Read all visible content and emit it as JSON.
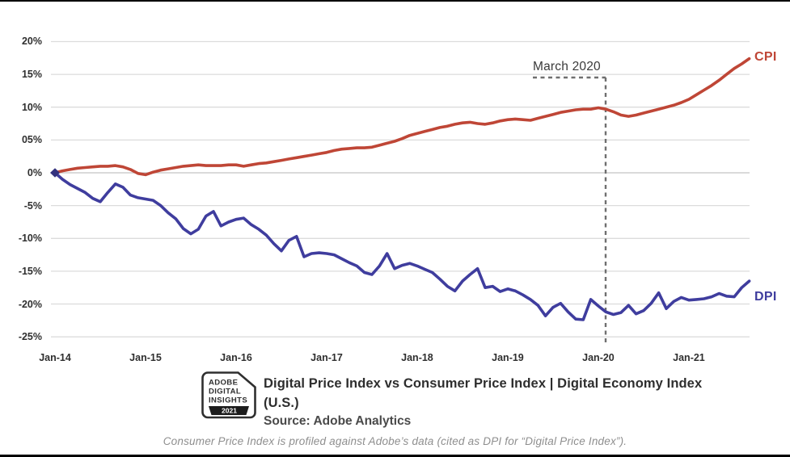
{
  "annotation": {
    "label": "March 2020"
  },
  "series_labels": {
    "cpi": "CPI",
    "dpi": "DPI"
  },
  "colors": {
    "cpi": "#bf4636",
    "dpi": "#3f3d9e",
    "grid": "#dcdcdc",
    "zero_line": "#c4c4c4",
    "dashed": "#6f6f6f",
    "origin_marker": "#34327e"
  },
  "footer": {
    "logo": {
      "line1": "ADOBE",
      "line2": "DIGITAL",
      "line3": "INSIGHTS",
      "year": "2021"
    },
    "title": "Digital Price Index vs Consumer Price Index | Digital Economy Index (U.S.)",
    "source": "Source: Adobe Analytics"
  },
  "caption": "Consumer Price Index is profiled against Adobe’s data (cited as DPI for “Digital Price Index”).",
  "chart_data": {
    "type": "line",
    "title": "Digital Price Index vs Consumer Price Index | Digital Economy Index (U.S.)",
    "x_interval": "monthly",
    "x_start": "Jan-2014",
    "x_end": "Sep-2021",
    "x_tick_labels": [
      "Jan-14",
      "Jan-15",
      "Jan-16",
      "Jan-17",
      "Jan-18",
      "Jan-19",
      "Jan-20",
      "Jan-21"
    ],
    "x_tick_month_indices": [
      0,
      12,
      24,
      36,
      48,
      60,
      72,
      84
    ],
    "y_ticks": [
      {
        "label": "20%",
        "value": 20
      },
      {
        "label": "15%",
        "value": 15
      },
      {
        "label": "10%",
        "value": 10
      },
      {
        "label": "05%",
        "value": 5
      },
      {
        "label": "0%",
        "value": 0
      },
      {
        "label": "-5%",
        "value": -5
      },
      {
        "label": "-10%",
        "value": -10
      },
      {
        "label": "-15%",
        "value": -15
      },
      {
        "label": "-20%",
        "value": -20
      },
      {
        "label": "-25%",
        "value": -25
      }
    ],
    "ylim": [
      -25,
      20
    ],
    "grid": "horizontal-only",
    "annotation": {
      "label": "March 2020",
      "month": "2020-03"
    },
    "series": [
      {
        "name": "CPI",
        "color": "#bf4636",
        "values": [
          0.0,
          0.3,
          0.5,
          0.7,
          0.8,
          0.9,
          1.0,
          1.0,
          1.1,
          0.9,
          0.5,
          -0.1,
          -0.3,
          0.1,
          0.4,
          0.6,
          0.8,
          1.0,
          1.1,
          1.2,
          1.1,
          1.1,
          1.1,
          1.2,
          1.2,
          1.0,
          1.2,
          1.4,
          1.5,
          1.7,
          1.9,
          2.1,
          2.3,
          2.5,
          2.7,
          2.9,
          3.1,
          3.4,
          3.6,
          3.7,
          3.8,
          3.8,
          3.9,
          4.2,
          4.5,
          4.8,
          5.2,
          5.7,
          6.0,
          6.3,
          6.6,
          6.9,
          7.1,
          7.4,
          7.6,
          7.7,
          7.5,
          7.4,
          7.6,
          7.9,
          8.1,
          8.2,
          8.1,
          8.0,
          8.3,
          8.6,
          8.9,
          9.2,
          9.4,
          9.6,
          9.7,
          9.7,
          9.9,
          9.7,
          9.3,
          8.8,
          8.6,
          8.8,
          9.1,
          9.4,
          9.7,
          10.0,
          10.3,
          10.7,
          11.2,
          11.9,
          12.6,
          13.3,
          14.1,
          15.0,
          15.9,
          16.6,
          17.4
        ]
      },
      {
        "name": "DPI",
        "color": "#3f3d9e",
        "values": [
          0.0,
          -1.0,
          -1.8,
          -2.4,
          -3.0,
          -3.9,
          -4.4,
          -3.0,
          -1.7,
          -2.2,
          -3.4,
          -3.8,
          -4.0,
          -4.2,
          -5.0,
          -6.1,
          -7.0,
          -8.5,
          -9.3,
          -8.6,
          -6.6,
          -5.9,
          -8.1,
          -7.5,
          -7.1,
          -6.9,
          -7.9,
          -8.6,
          -9.5,
          -10.8,
          -11.9,
          -10.3,
          -9.7,
          -12.8,
          -12.3,
          -12.2,
          -12.3,
          -12.5,
          -13.1,
          -13.7,
          -14.2,
          -15.2,
          -15.5,
          -14.2,
          -12.3,
          -14.6,
          -14.1,
          -13.8,
          -14.2,
          -14.7,
          -15.2,
          -16.2,
          -17.3,
          -18.0,
          -16.5,
          -15.5,
          -14.6,
          -17.5,
          -17.3,
          -18.1,
          -17.7,
          -18.0,
          -18.6,
          -19.3,
          -20.2,
          -21.8,
          -20.5,
          -19.9,
          -21.2,
          -22.3,
          -22.4,
          -19.3,
          -20.3,
          -21.2,
          -21.6,
          -21.3,
          -20.2,
          -21.5,
          -21.0,
          -19.9,
          -18.3,
          -20.7,
          -19.6,
          -19.0,
          -19.4,
          -19.3,
          -19.2,
          -18.9,
          -18.4,
          -18.8,
          -18.9,
          -17.5,
          -16.5
        ]
      }
    ]
  }
}
